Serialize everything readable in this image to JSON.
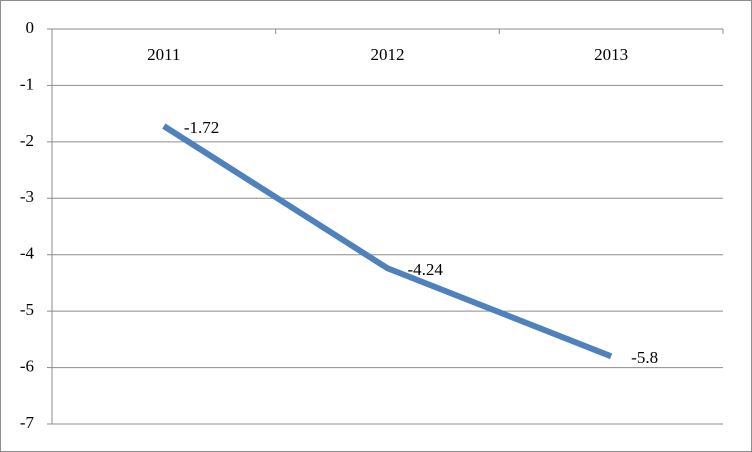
{
  "chart_data": {
    "type": "line",
    "categories": [
      "2011",
      "2012",
      "2013"
    ],
    "series": [
      {
        "color": "#4f81bd",
        "values": [
          -1.72,
          -4.24,
          -5.8
        ]
      }
    ],
    "ylim": [
      -7,
      0
    ],
    "yticks": [
      0,
      -1,
      -2,
      -3,
      -4,
      -5,
      -6,
      -7
    ],
    "grid": true
  }
}
